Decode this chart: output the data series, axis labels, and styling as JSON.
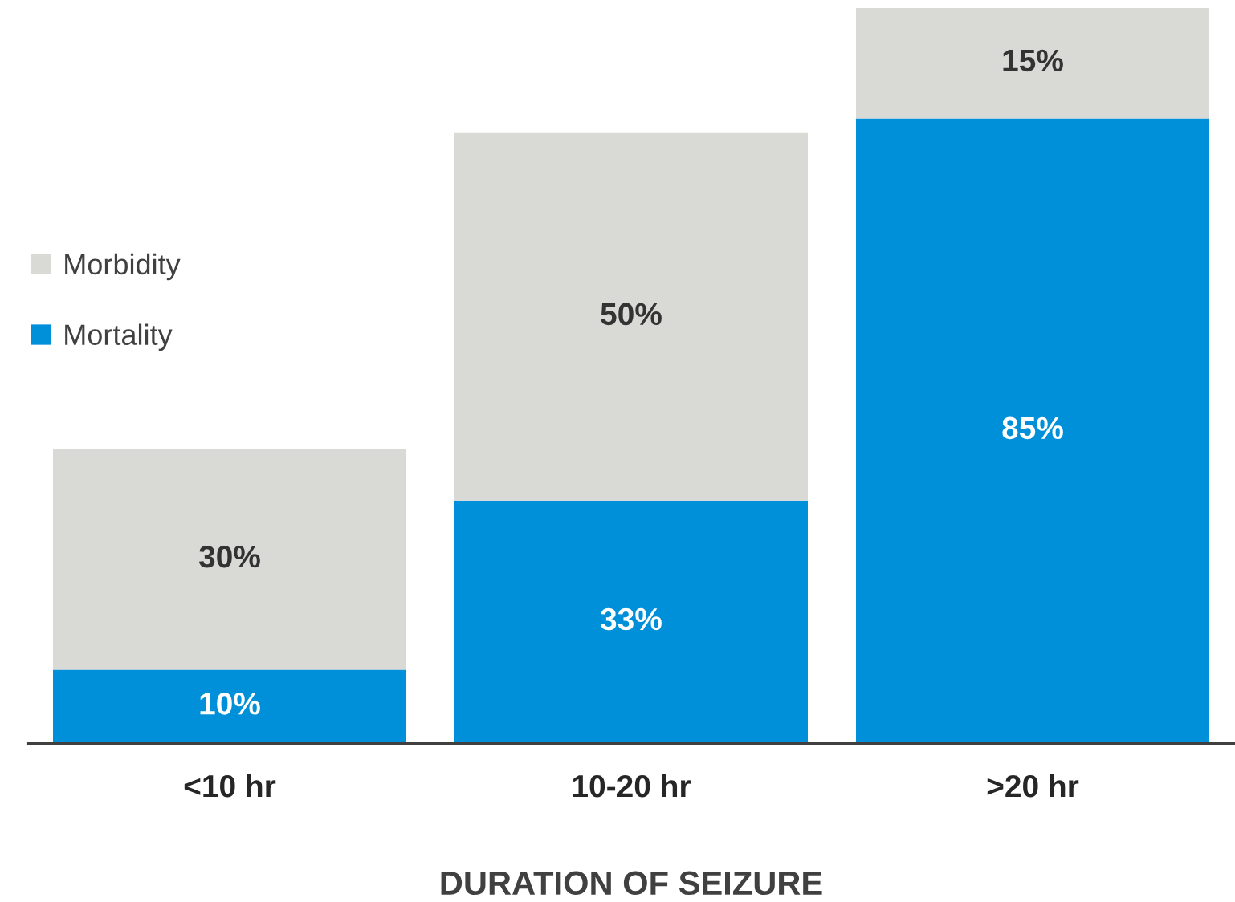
{
  "chart_data": {
    "type": "bar",
    "stacked": true,
    "xlabel": "DURATION OF SEIZURE",
    "categories": [
      "<10 hr",
      "10-20 hr",
      ">20 hr"
    ],
    "series": [
      {
        "name": "Mortality",
        "color": "#0090d9",
        "values": [
          10,
          33,
          85
        ],
        "value_labels": [
          "10%",
          "33%",
          "85%"
        ]
      },
      {
        "name": "Morbidity",
        "color": "#d9d9d6",
        "values": [
          30,
          50,
          15
        ],
        "value_labels": [
          "30%",
          "50%",
          "15%"
        ]
      }
    ],
    "legend": "left",
    "grid": false
  }
}
